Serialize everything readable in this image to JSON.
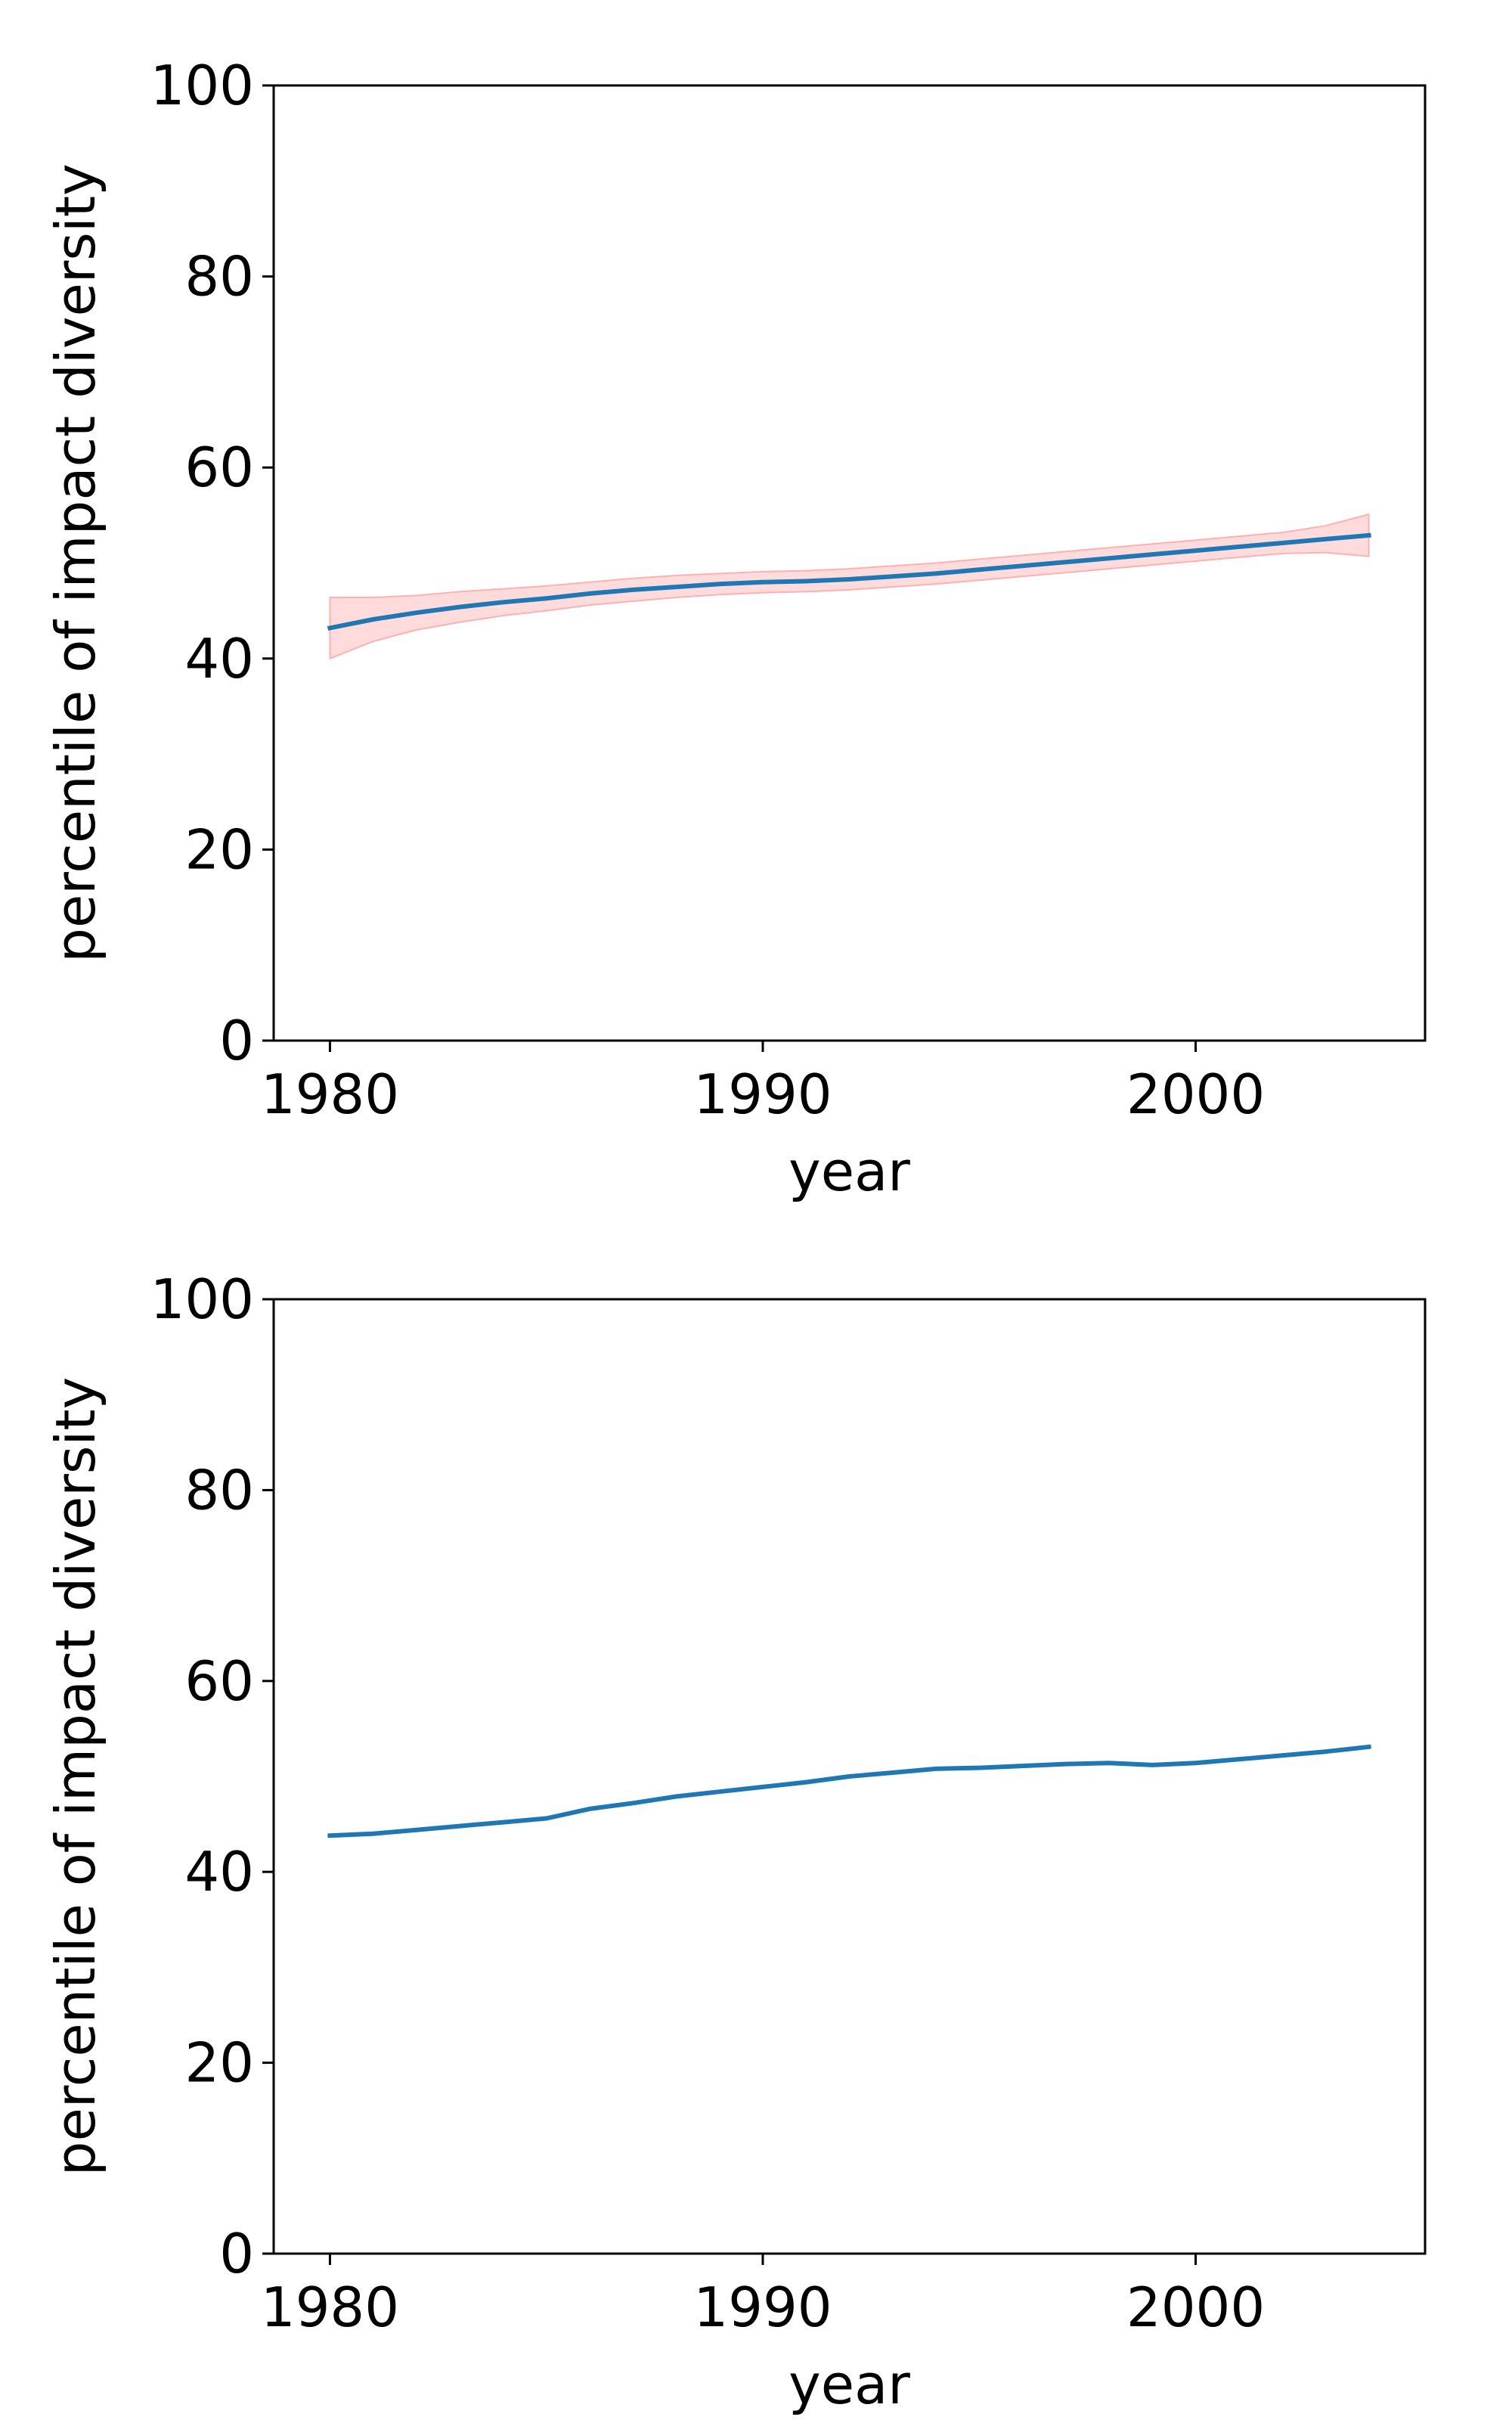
{
  "colors": {
    "line": "#1f77b4",
    "band_fill": "#ffcccc",
    "band_edge": "#ffb0b0",
    "axes": "#000000",
    "background": "#ffffff"
  },
  "chart_data": [
    {
      "type": "line",
      "title": "",
      "xlabel": "year",
      "ylabel": "percentile of impact diversity",
      "xlim": [
        1978.7,
        2005.3
      ],
      "ylim": [
        0,
        100
      ],
      "x_ticks": [
        1980,
        1990,
        2000
      ],
      "y_ticks": [
        0,
        20,
        40,
        60,
        80,
        100
      ],
      "grid": false,
      "legend": "none",
      "series": [
        {
          "x": [
            1980,
            1981,
            1982,
            1983,
            1984,
            1985,
            1986,
            1987,
            1988,
            1989,
            1990,
            1991,
            1992,
            1993,
            1994,
            1995,
            1996,
            1997,
            1998,
            1999,
            2000,
            2001,
            2002,
            2003,
            2004
          ],
          "y": [
            43.2,
            44.1,
            44.8,
            45.4,
            45.9,
            46.3,
            46.8,
            47.2,
            47.5,
            47.8,
            48.0,
            48.1,
            48.3,
            48.6,
            48.9,
            49.3,
            49.7,
            50.1,
            50.5,
            50.9,
            51.3,
            51.7,
            52.1,
            52.5,
            52.9
          ],
          "lower": [
            40.0,
            41.8,
            43.0,
            43.8,
            44.5,
            45.0,
            45.6,
            46.0,
            46.4,
            46.7,
            46.9,
            47.0,
            47.2,
            47.5,
            47.8,
            48.2,
            48.6,
            49.0,
            49.4,
            49.8,
            50.2,
            50.6,
            51.0,
            51.1,
            50.7
          ],
          "upper": [
            46.4,
            46.4,
            46.6,
            47.0,
            47.3,
            47.6,
            48.0,
            48.4,
            48.7,
            48.9,
            49.1,
            49.2,
            49.4,
            49.7,
            50.0,
            50.4,
            50.8,
            51.2,
            51.6,
            52.0,
            52.4,
            52.8,
            53.2,
            53.9,
            55.1
          ]
        }
      ]
    },
    {
      "type": "line",
      "title": "",
      "xlabel": "year",
      "ylabel": "percentile of impact diversity",
      "xlim": [
        1978.7,
        2005.3
      ],
      "ylim": [
        0,
        100
      ],
      "x_ticks": [
        1980,
        1990,
        2000
      ],
      "y_ticks": [
        0,
        20,
        40,
        60,
        80,
        100
      ],
      "grid": false,
      "legend": "none",
      "series": [
        {
          "x": [
            1980,
            1981,
            1982,
            1983,
            1984,
            1985,
            1986,
            1987,
            1988,
            1989,
            1990,
            1991,
            1992,
            1993,
            1994,
            1995,
            1996,
            1997,
            1998,
            1999,
            2000,
            2001,
            2002,
            2003,
            2004
          ],
          "y": [
            43.8,
            44.0,
            44.4,
            44.8,
            45.2,
            45.6,
            46.6,
            47.2,
            47.9,
            48.4,
            48.9,
            49.4,
            50.0,
            50.4,
            50.8,
            50.9,
            51.1,
            51.3,
            51.4,
            51.2,
            51.4,
            51.8,
            52.2,
            52.6,
            53.1
          ]
        }
      ]
    }
  ]
}
